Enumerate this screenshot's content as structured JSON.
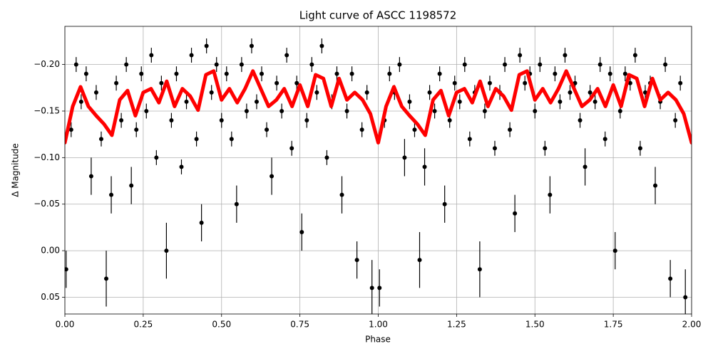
{
  "chart_data": {
    "type": "scatter",
    "title": "Light curve of ASCC 1198572",
    "x_label": "Phase",
    "y_label": "Δ Magnitude",
    "xlim": [
      0,
      2
    ],
    "ylim": [
      -0.241,
      0.068
    ],
    "invert_y": true,
    "grid": true,
    "xticks": [
      {
        "value": 0,
        "label": "0.00"
      },
      0.25,
      {
        "value": 0.5,
        "label": "0.50"
      },
      0.75,
      {
        "value": 1,
        "label": "1.00"
      },
      1.25,
      {
        "value": 1.5,
        "label": "1.50"
      },
      1.75,
      {
        "value": 2,
        "label": "2.00"
      }
    ],
    "yticks": [
      {
        "value": -0.2,
        "label": "−0.20"
      },
      {
        "value": -0.15,
        "label": "−0.15"
      },
      {
        "value": -0.1,
        "label": "−0.10"
      },
      {
        "value": -0.05,
        "label": "−0.05"
      },
      {
        "value": 0,
        "label": "0.00"
      },
      0.05
    ],
    "points": {
      "color": "#000000",
      "x": [
        0.004,
        0.02,
        0.036,
        0.052,
        0.068,
        0.084,
        0.1,
        0.116,
        0.132,
        0.148,
        0.164,
        0.18,
        0.196,
        0.212,
        0.228,
        0.244,
        0.26,
        0.276,
        0.292,
        0.308,
        0.324,
        0.34,
        0.356,
        0.372,
        0.388,
        0.404,
        0.42,
        0.436,
        0.452,
        0.468,
        0.484,
        0.5,
        0.516,
        0.532,
        0.548,
        0.564,
        0.58,
        0.596,
        0.612,
        0.628,
        0.644,
        0.66,
        0.676,
        0.692,
        0.708,
        0.724,
        0.74,
        0.756,
        0.772,
        0.788,
        0.804,
        0.82,
        0.836,
        0.852,
        0.868,
        0.884,
        0.9,
        0.916,
        0.932,
        0.948,
        0.964,
        0.98,
        1.004,
        1.02,
        1.036,
        1.052,
        1.068,
        1.084,
        1.1,
        1.116,
        1.132,
        1.148,
        1.164,
        1.18,
        1.196,
        1.212,
        1.228,
        1.244,
        1.26,
        1.276,
        1.292,
        1.308,
        1.324,
        1.34,
        1.356,
        1.372,
        1.388,
        1.404,
        1.42,
        1.436,
        1.452,
        1.468,
        1.484,
        1.5,
        1.516,
        1.532,
        1.548,
        1.564,
        1.58,
        1.596,
        1.612,
        1.628,
        1.644,
        1.66,
        1.676,
        1.692,
        1.708,
        1.724,
        1.74,
        1.756,
        1.772,
        1.788,
        1.804,
        1.82,
        1.836,
        1.852,
        1.868,
        1.884,
        1.9,
        1.916,
        1.932,
        1.948,
        1.964,
        1.98
      ],
      "y": [
        0.02,
        -0.13,
        -0.2,
        -0.16,
        -0.19,
        -0.08,
        -0.17,
        -0.12,
        0.03,
        -0.06,
        -0.18,
        -0.14,
        -0.2,
        -0.07,
        -0.13,
        -0.19,
        -0.15,
        -0.21,
        -0.1,
        -0.18,
        0.0,
        -0.14,
        -0.19,
        -0.09,
        -0.16,
        -0.21,
        -0.12,
        -0.03,
        -0.22,
        -0.17,
        -0.2,
        -0.14,
        -0.19,
        -0.12,
        -0.05,
        -0.2,
        -0.15,
        -0.22,
        -0.16,
        -0.19,
        -0.13,
        -0.08,
        -0.18,
        -0.15,
        -0.21,
        -0.11,
        -0.18,
        -0.02,
        -0.14,
        -0.2,
        -0.17,
        -0.22,
        -0.1,
        -0.16,
        -0.19,
        -0.06,
        -0.15,
        -0.19,
        0.01,
        -0.13,
        -0.17,
        0.04,
        0.04,
        -0.14,
        -0.19,
        -0.17,
        -0.2,
        -0.1,
        -0.16,
        -0.13,
        0.01,
        -0.09,
        -0.17,
        -0.15,
        -0.19,
        -0.05,
        -0.14,
        -0.18,
        -0.16,
        -0.2,
        -0.12,
        -0.17,
        0.02,
        -0.15,
        -0.18,
        -0.11,
        -0.17,
        -0.2,
        -0.13,
        -0.04,
        -0.21,
        -0.18,
        -0.19,
        -0.15,
        -0.2,
        -0.11,
        -0.06,
        -0.19,
        -0.16,
        -0.21,
        -0.17,
        -0.18,
        -0.14,
        -0.09,
        -0.17,
        -0.16,
        -0.2,
        -0.12,
        -0.19,
        0.0,
        -0.15,
        -0.19,
        -0.18,
        -0.21,
        -0.11,
        -0.17,
        -0.18,
        -0.07,
        -0.16,
        -0.2,
        0.03,
        -0.14,
        -0.18,
        0.05
      ],
      "yerr": [
        0.02,
        0.008,
        0.008,
        0.008,
        0.008,
        0.02,
        0.008,
        0.008,
        0.03,
        0.02,
        0.008,
        0.008,
        0.008,
        0.02,
        0.008,
        0.008,
        0.008,
        0.008,
        0.008,
        0.008,
        0.03,
        0.008,
        0.008,
        0.008,
        0.008,
        0.008,
        0.008,
        0.02,
        0.008,
        0.008,
        0.008,
        0.008,
        0.008,
        0.008,
        0.02,
        0.008,
        0.008,
        0.008,
        0.008,
        0.008,
        0.008,
        0.02,
        0.008,
        0.008,
        0.008,
        0.008,
        0.008,
        0.02,
        0.008,
        0.008,
        0.008,
        0.008,
        0.008,
        0.008,
        0.008,
        0.02,
        0.008,
        0.008,
        0.02,
        0.008,
        0.008,
        0.03,
        0.02,
        0.008,
        0.008,
        0.008,
        0.008,
        0.02,
        0.008,
        0.008,
        0.03,
        0.02,
        0.008,
        0.008,
        0.008,
        0.02,
        0.008,
        0.008,
        0.008,
        0.008,
        0.008,
        0.008,
        0.03,
        0.008,
        0.008,
        0.008,
        0.008,
        0.008,
        0.008,
        0.02,
        0.008,
        0.008,
        0.008,
        0.008,
        0.008,
        0.008,
        0.02,
        0.008,
        0.008,
        0.008,
        0.008,
        0.008,
        0.008,
        0.02,
        0.008,
        0.008,
        0.008,
        0.008,
        0.008,
        0.02,
        0.008,
        0.008,
        0.008,
        0.008,
        0.008,
        0.008,
        0.008,
        0.02,
        0.008,
        0.008,
        0.02,
        0.008,
        0.008,
        0.03
      ]
    },
    "model": {
      "color": "#ff0000",
      "x": [
        0,
        0.025,
        0.05,
        0.075,
        0.1,
        0.125,
        0.15,
        0.175,
        0.2,
        0.225,
        0.25,
        0.275,
        0.3,
        0.325,
        0.35,
        0.375,
        0.4,
        0.425,
        0.45,
        0.475,
        0.5,
        0.525,
        0.55,
        0.575,
        0.6,
        0.625,
        0.65,
        0.675,
        0.7,
        0.725,
        0.75,
        0.775,
        0.8,
        0.825,
        0.85,
        0.875,
        0.9,
        0.925,
        0.95,
        0.975,
        1,
        1.025,
        1.05,
        1.075,
        1.1,
        1.125,
        1.15,
        1.175,
        1.2,
        1.225,
        1.25,
        1.275,
        1.3,
        1.325,
        1.35,
        1.375,
        1.4,
        1.425,
        1.45,
        1.475,
        1.5,
        1.525,
        1.55,
        1.575,
        1.6,
        1.625,
        1.65,
        1.675,
        1.7,
        1.725,
        1.75,
        1.775,
        1.8,
        1.825,
        1.85,
        1.875,
        1.9,
        1.925,
        1.95,
        1.975,
        2
      ],
      "y": [
        -0.116,
        -0.155,
        -0.176,
        -0.155,
        -0.145,
        -0.136,
        -0.124,
        -0.162,
        -0.172,
        -0.145,
        -0.17,
        -0.174,
        -0.159,
        -0.182,
        -0.155,
        -0.174,
        -0.166,
        -0.151,
        -0.189,
        -0.193,
        -0.162,
        -0.174,
        -0.159,
        -0.174,
        -0.193,
        -0.174,
        -0.155,
        -0.162,
        -0.174,
        -0.155,
        -0.178,
        -0.155,
        -0.189,
        -0.185,
        -0.155,
        -0.185,
        -0.162,
        -0.17,
        -0.162,
        -0.147,
        -0.116,
        -0.155,
        -0.176,
        -0.155,
        -0.145,
        -0.136,
        -0.124,
        -0.162,
        -0.172,
        -0.145,
        -0.17,
        -0.174,
        -0.159,
        -0.182,
        -0.155,
        -0.174,
        -0.166,
        -0.151,
        -0.189,
        -0.193,
        -0.162,
        -0.174,
        -0.159,
        -0.174,
        -0.193,
        -0.174,
        -0.155,
        -0.162,
        -0.174,
        -0.155,
        -0.178,
        -0.155,
        -0.189,
        -0.185,
        -0.155,
        -0.185,
        -0.162,
        -0.17,
        -0.162,
        -0.147,
        -0.116
      ]
    }
  }
}
